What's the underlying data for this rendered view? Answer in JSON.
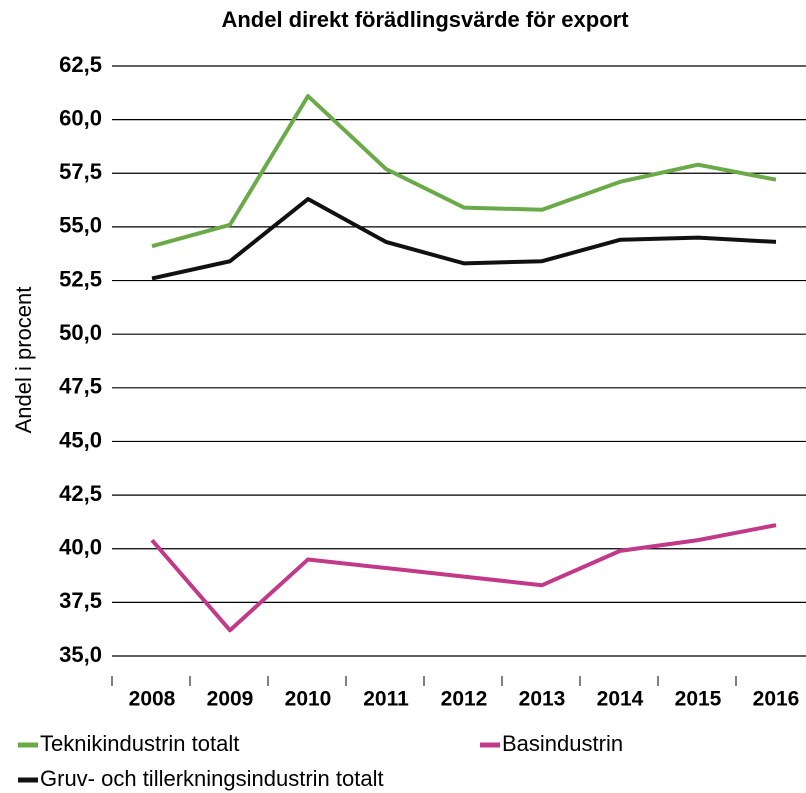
{
  "chart_data": {
    "type": "line",
    "title": "Andel direkt förädlingsvärde för export",
    "y_label": "Andel i procent",
    "categories": [
      "2008",
      "2009",
      "2010",
      "2011",
      "2012",
      "2013",
      "2014",
      "2015",
      "2016"
    ],
    "series": [
      {
        "name": "Teknikindustrin totalt",
        "color": "#6aaa48",
        "values": [
          54.1,
          55.1,
          61.1,
          57.7,
          55.9,
          55.8,
          57.1,
          57.9,
          57.2
        ]
      },
      {
        "name": "Basindustrin",
        "color": "#c2398a",
        "values": [
          40.4,
          36.2,
          39.5,
          39.1,
          38.7,
          38.3,
          39.9,
          40.4,
          41.1
        ]
      },
      {
        "name": "Gruv- och tillerkningsindustrin totalt",
        "color": "#111111",
        "values": [
          52.6,
          53.4,
          56.3,
          54.3,
          53.3,
          53.4,
          54.4,
          54.5,
          54.3
        ]
      }
    ],
    "ylim": [
      35,
      62.5
    ],
    "yticks": [
      {
        "value": 35,
        "label": "35,0"
      },
      {
        "value": 37.5,
        "label": "37,5"
      },
      {
        "value": 40,
        "label": "40,0"
      },
      {
        "value": 42.5,
        "label": "42,5"
      },
      {
        "value": 45,
        "label": "45,0"
      },
      {
        "value": 47.5,
        "label": "47,5"
      },
      {
        "value": 50,
        "label": "50,0"
      },
      {
        "value": 52.5,
        "label": "52,5"
      },
      {
        "value": 55,
        "label": "55,0"
      },
      {
        "value": 57.5,
        "label": "57,5"
      },
      {
        "value": 60,
        "label": "60,0"
      },
      {
        "value": 62.5,
        "label": "62,5"
      }
    ],
    "grid": true
  }
}
